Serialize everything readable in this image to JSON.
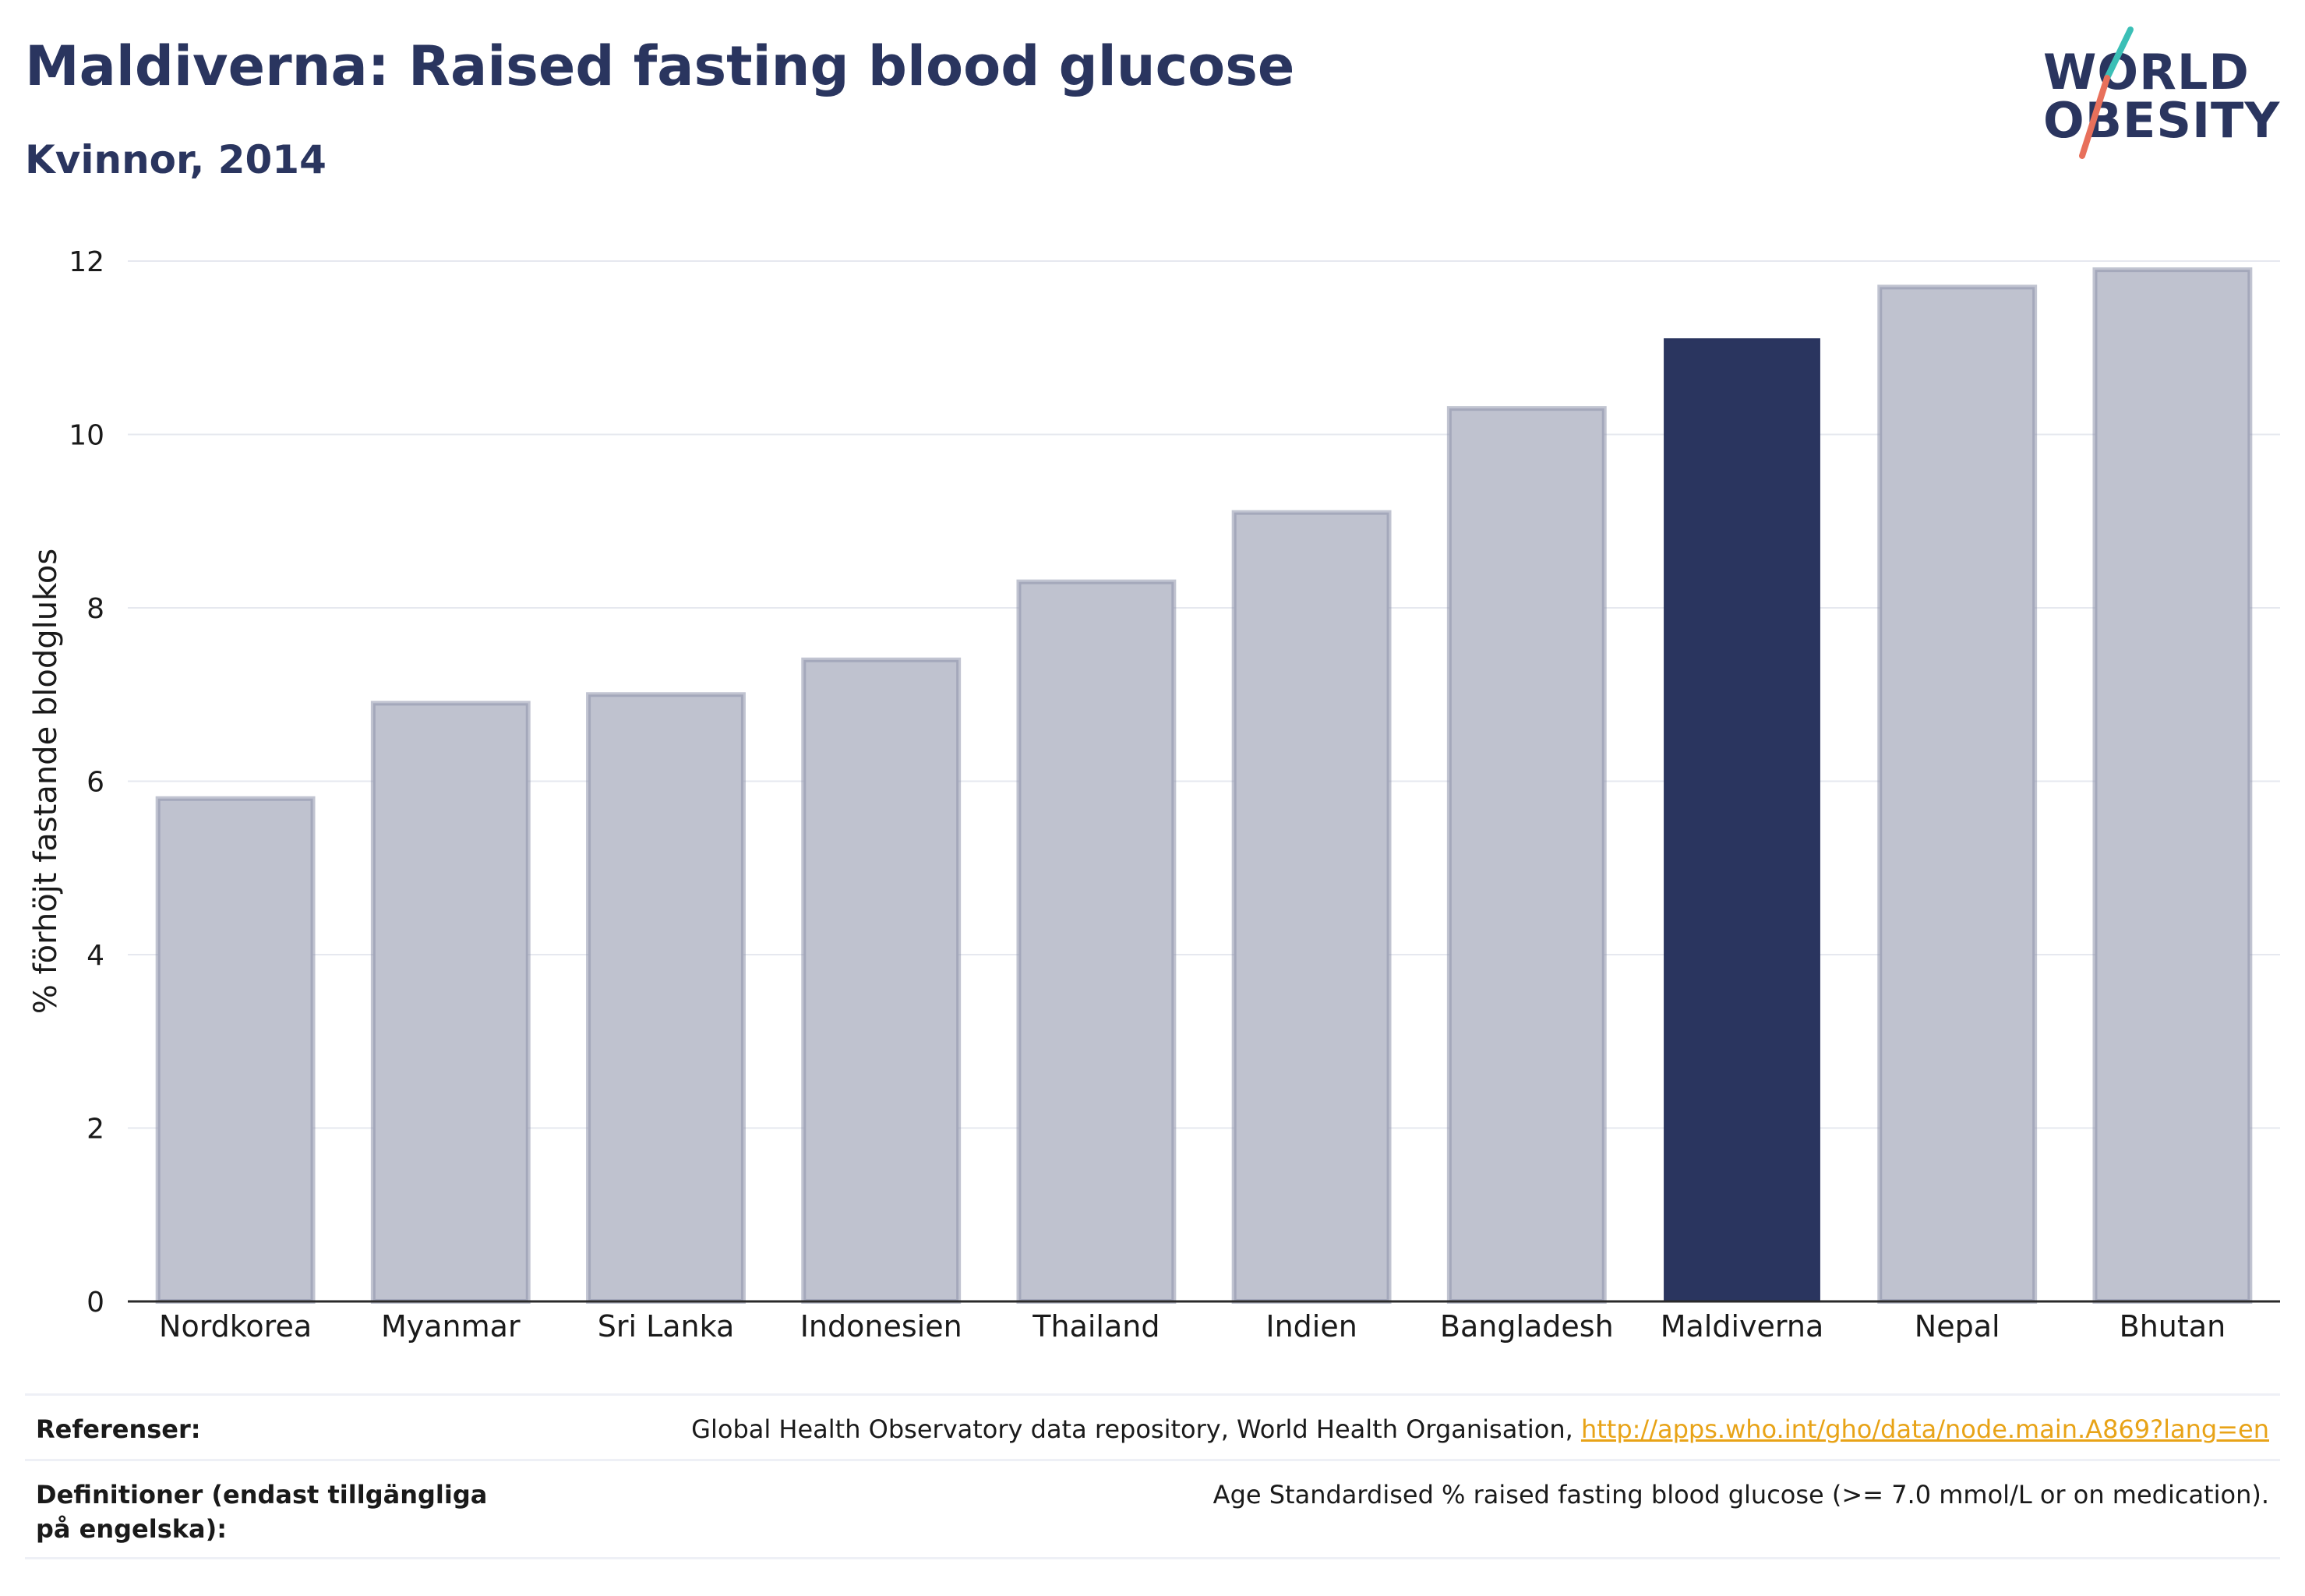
{
  "title": "Maldiverna: Raised fasting blood glucose",
  "subtitle": "Kvinnor, 2014",
  "logo": {
    "line1": "WORLD",
    "line2": "OBESITY"
  },
  "colors": {
    "highlight": "#2a355f",
    "bar": "#bfc2cf",
    "bar_border": "#8e93ab",
    "accent_teal": "#3bbfb6",
    "accent_coral": "#e8705b",
    "link": "#e8a317"
  },
  "chart_data": {
    "type": "bar",
    "categories": [
      "Nordkorea",
      "Myanmar",
      "Sri Lanka",
      "Indonesien",
      "Thailand",
      "Indien",
      "Bangladesh",
      "Maldiverna",
      "Nepal",
      "Bhutan"
    ],
    "values": [
      5.8,
      6.9,
      7.0,
      7.4,
      8.3,
      9.1,
      10.3,
      11.1,
      11.7,
      11.9
    ],
    "highlight": "Maldiverna",
    "ylabel": "% förhöjt fastande blodglukos",
    "xlabel": "",
    "ylim": [
      0,
      12
    ],
    "yticks": [
      0,
      2,
      4,
      6,
      8,
      10,
      12
    ],
    "grid": true
  },
  "footer": {
    "references_label": "Referenser:",
    "references_text": "Global Health Observatory data repository, World Health Organisation, ",
    "references_link": "http://apps.who.int/gho/data/node.main.A869?lang=en",
    "definitions_label": "Definitioner (endast tillgängliga på engelska):",
    "definitions_text": "Age Standardised % raised fasting blood glucose (>= 7.0 mmol/L or on medication)."
  }
}
